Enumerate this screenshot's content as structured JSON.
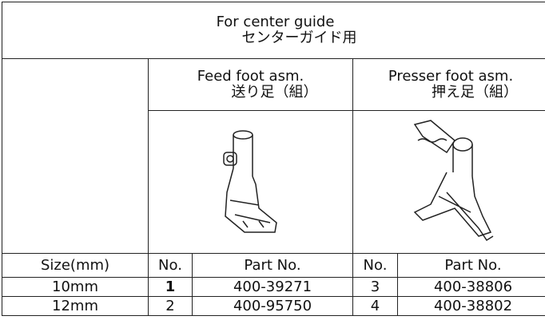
{
  "header": {
    "title": "For center guide",
    "title_ja": "センターガイド用"
  },
  "groups": [
    {
      "title": "Feed foot asm.",
      "title_ja": "送り足（組）"
    },
    {
      "title": "Presser foot asm.",
      "title_ja": "押え足（組）"
    }
  ],
  "table": {
    "columns": [
      "Size(mm)",
      "No.",
      "Part No.",
      "No.",
      "Part No."
    ],
    "rows": [
      [
        "10mm",
        "1",
        "400-39271",
        "3",
        "400-38806"
      ],
      [
        "12mm",
        "2",
        "400-95750",
        "4",
        "400-38802"
      ]
    ]
  }
}
